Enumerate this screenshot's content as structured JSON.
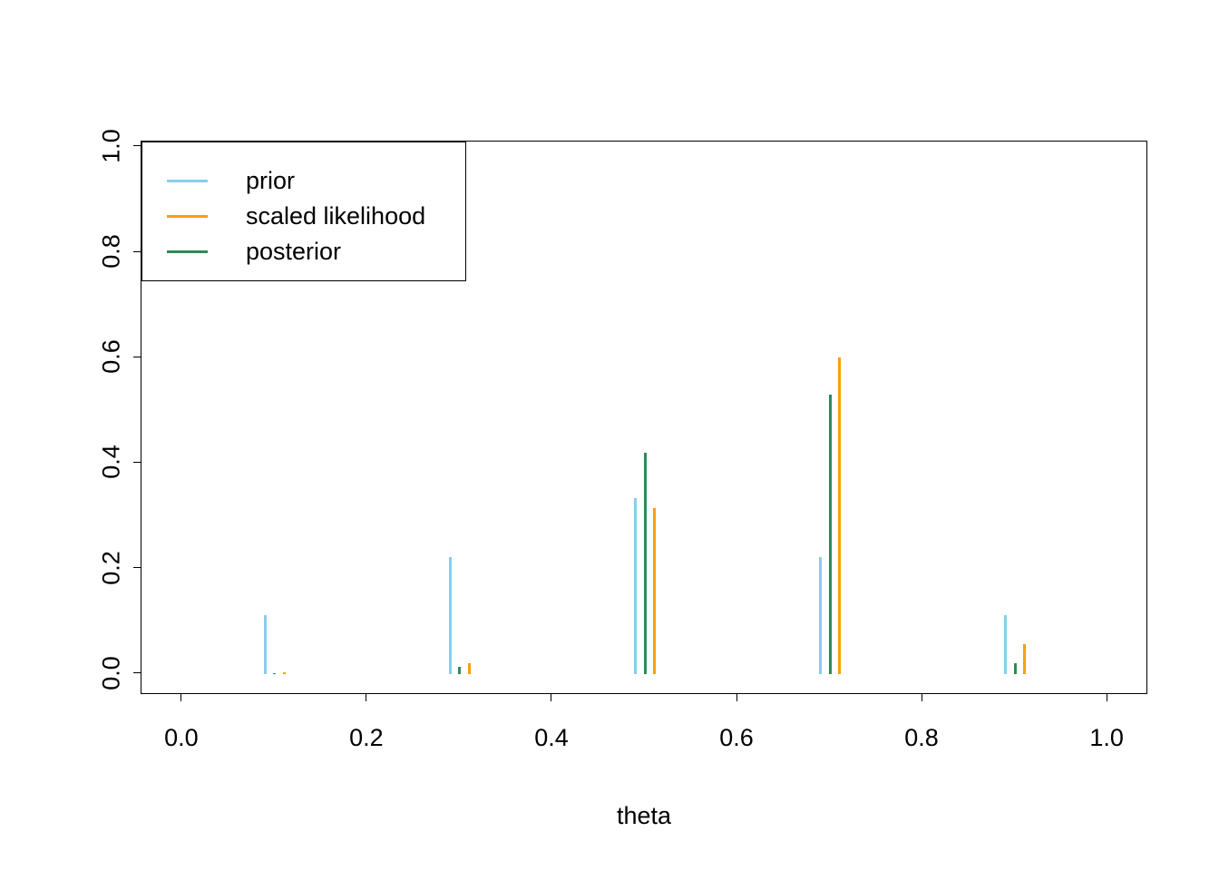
{
  "figure": {
    "background": "#FFFFFF",
    "axis_color": "#000000",
    "text_color": "#000000"
  },
  "chart_data": {
    "type": "bar",
    "title": "",
    "xlabel": "theta",
    "ylabel": "",
    "x": [
      0.1,
      0.3,
      0.5,
      0.7,
      0.9
    ],
    "series": [
      {
        "name": "prior",
        "color": "#87CEEB",
        "offset": -0.01,
        "values": [
          0.111,
          0.222,
          0.333,
          0.222,
          0.111
        ]
      },
      {
        "name": "scaled likelihood",
        "color": "#F5A300",
        "offset": 0.01,
        "values": [
          0.003,
          0.021,
          0.315,
          0.6,
          0.056
        ]
      },
      {
        "name": "posterior",
        "color": "#2E8B57",
        "offset": 0.0,
        "values": [
          0.002,
          0.013,
          0.42,
          0.53,
          0.021
        ]
      }
    ],
    "xticks": [
      0.0,
      0.2,
      0.4,
      0.6,
      0.8,
      1.0
    ],
    "yticks": [
      0.0,
      0.2,
      0.4,
      0.6,
      0.8,
      1.0
    ],
    "xtick_labels": [
      "0.0",
      "0.2",
      "0.4",
      "0.6",
      "0.8",
      "1.0"
    ],
    "ytick_labels": [
      "0.0",
      "0.2",
      "0.4",
      "0.6",
      "0.8",
      "1.0"
    ],
    "xlim": [
      -0.044,
      1.044
    ],
    "ylim": [
      -0.04,
      1.01
    ],
    "grid": false,
    "legend": {
      "position": "topleft",
      "entries": [
        "prior",
        "scaled likelihood",
        "posterior"
      ]
    }
  }
}
